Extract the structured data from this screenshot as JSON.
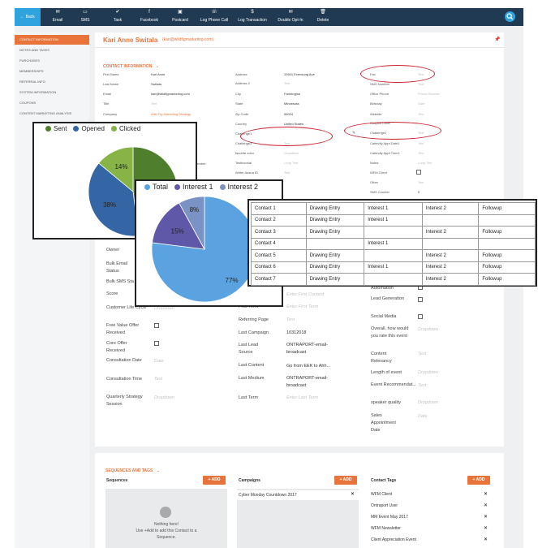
{
  "toolbar": {
    "back": "Back",
    "buttons": [
      {
        "label": "Email",
        "icon": "✉"
      },
      {
        "label": "SMS",
        "icon": "▭"
      },
      {
        "label": "Task",
        "icon": "✔"
      },
      {
        "label": "Facebook",
        "icon": "f"
      },
      {
        "label": "Postcard",
        "icon": "▣"
      },
      {
        "label": "Log Phone Call",
        "icon": "☏"
      },
      {
        "label": "Log Transaction",
        "icon": "$"
      },
      {
        "label": "Double Opt-In",
        "icon": "✉"
      },
      {
        "label": "Delete",
        "icon": "🗑"
      }
    ]
  },
  "sidebar": {
    "items": [
      "CONTACT INFORMATION",
      "NOTES AND TASKS",
      "PURCHASES",
      "MEMBERSHIPS",
      "REFERRAL INFO",
      "SYSTEM INFORMATION",
      "COUPONS",
      "CONTENT MARKETING ANALYSIS"
    ]
  },
  "contact": {
    "name": "Kari Anne Switala",
    "email": "(kari@wildfigmarketing.com)",
    "section_title": "CONTACT INFORMATION",
    "chevron": "⌄"
  },
  "col1": [
    {
      "label": "First Name",
      "value": "Kari Anne"
    },
    {
      "label": "Last Name",
      "value": "Switala"
    },
    {
      "label": "Email",
      "value": "kari@wildfigmarketing.com"
    },
    {
      "label": "Title",
      "value": "Text"
    },
    {
      "label": "Company",
      "value": "Wild Fig Marketing Strategy"
    }
  ],
  "col2": [
    {
      "label": "Address",
      "value": "19941 Evensong Ave"
    },
    {
      "label": "Address 2",
      "value": "Text"
    },
    {
      "label": "City",
      "value": "Farmington"
    },
    {
      "label": "State",
      "value": "Minnesota"
    },
    {
      "label": "Zip Code",
      "value": "55024"
    },
    {
      "label": "Country",
      "value": "United States"
    },
    {
      "label": "Challenge1",
      "value": ""
    },
    {
      "label": "Challenge3",
      "value": "Text"
    },
    {
      "label": "favorite color",
      "value": "Dropdown"
    },
    {
      "label": "Testimonial",
      "value": "Long Text"
    },
    {
      "label": "Writer Asana ID",
      "value": "Text"
    }
  ],
  "col1_extra": {
    "label": "attendee"
  },
  "col3": [
    {
      "label": "Fax",
      "value": "Text"
    },
    {
      "label": "SMS Number",
      "value": "Text"
    },
    {
      "label": "Office Phone",
      "value": "Phone Number"
    },
    {
      "label": "Birthday",
      "value": "Date"
    },
    {
      "label": "Website",
      "value": "Text"
    },
    {
      "label": "Coupon Code",
      "value": ""
    },
    {
      "label": "Challenge2",
      "value": "Text"
    },
    {
      "label": "Calendly Appt Date1",
      "value": "Text"
    },
    {
      "label": "Calendly Appt Time1",
      "value": "Text"
    },
    {
      "label": "Notes",
      "value": "Long Text"
    },
    {
      "label": "WFM Client",
      "value": ""
    },
    {
      "label": "Other",
      "value": "Text"
    },
    {
      "label": "SMS Counter",
      "value": "0"
    }
  ],
  "lower_left": [
    {
      "label": "Owner",
      "value": ""
    },
    {
      "label": "Bulk Email Status",
      "value": "?"
    },
    {
      "label": "Bulk SMS Sta",
      "value": ""
    },
    {
      "label": "Score",
      "value": ""
    },
    {
      "label": "Customer Life Cycle",
      "value": "Dropdown"
    },
    {
      "label": "Free Value Offer Received",
      "value": ""
    },
    {
      "label": "Core Offer Received",
      "value": ""
    },
    {
      "label": "Consultation Date",
      "value": "Date"
    },
    {
      "label": "Consultation Time",
      "value": "Text"
    },
    {
      "label": "Quarterly Strategy Session",
      "value": "Dropdown"
    }
  ],
  "lower_mid": [
    {
      "label": "First Term",
      "value": "Enter First Term"
    },
    {
      "label": "Referring Page",
      "value": "Text"
    },
    {
      "label": "Last Campaign",
      "value": "10312018"
    },
    {
      "label": "Last Lead Source",
      "value": "ONTRAPORT-email-broadcast"
    },
    {
      "label": "Last Content",
      "value": "Go from EEK to Ahh..."
    },
    {
      "label": "Last Medium",
      "value": "ONTRAPORT-email-broadcast"
    },
    {
      "label": "Last Term",
      "value": "Enter Last Term"
    }
  ],
  "lower_mid_top": {
    "value": "Enter First Content"
  },
  "lower_right": [
    {
      "label": "Automation",
      "value": ""
    },
    {
      "label": "Lead Generation",
      "value": ""
    },
    {
      "label": "Social Media",
      "value": ""
    },
    {
      "label": "Overall, how would you rate this event",
      "value": "Dropdown"
    },
    {
      "label": "Content Relevancy",
      "value": "Text"
    },
    {
      "label": "Length of event",
      "value": "Dropdown"
    },
    {
      "label": "Event Recommendat...",
      "value": "Text"
    },
    {
      "label": "speaker quality",
      "value": "Dropdown"
    },
    {
      "label": "Sales Appointment Date",
      "value": "Date"
    }
  ],
  "pie1": {
    "legend": [
      {
        "name": "Sent",
        "color": "#4f7f2c"
      },
      {
        "name": "Opened",
        "color": "#3465a4"
      },
      {
        "name": "Clicked",
        "color": "#86b447"
      }
    ]
  },
  "pie2": {
    "legend": [
      {
        "name": "Total",
        "color": "#5aa3e0"
      },
      {
        "name": "Interest 1",
        "color": "#5f58a8"
      },
      {
        "name": "Interest 2",
        "color": "#7a93c4"
      }
    ]
  },
  "chart_data": [
    {
      "type": "pie",
      "labels": [
        "Sent",
        "Opened",
        "Clicked"
      ],
      "values": [
        48,
        38,
        14
      ],
      "colors": [
        "#4f7f2c",
        "#3465a4",
        "#86b447"
      ]
    },
    {
      "type": "pie",
      "labels": [
        "Total",
        "Interest 1",
        "Interest 2"
      ],
      "values": [
        77,
        15,
        8
      ],
      "colors": [
        "#5aa3e0",
        "#5f58a8",
        "#7a93c4"
      ]
    }
  ],
  "table_rows": [
    [
      "Contact 1",
      "Drawing Entry",
      "Interest 1",
      "Interest 2",
      "Followup"
    ],
    [
      "Contact 2",
      "Drawing Entry",
      "Interest 1",
      "",
      ""
    ],
    [
      "Contact 3",
      "Drawing Entry",
      "",
      "Interest 2",
      "Followup"
    ],
    [
      "Contact 4",
      "",
      "Interest 1",
      "",
      ""
    ],
    [
      "Contact 5",
      "Drawing Entry",
      "",
      "Interest 2",
      "Followup"
    ],
    [
      "Contact 6",
      "Drawing Entry",
      "Interest 1",
      "Interest 2",
      "Followup"
    ],
    [
      "Contact 7",
      "Drawing Entry",
      "",
      "Interest 2",
      "Followup"
    ]
  ],
  "sequences": {
    "section_title": "SEQUENCES AND TAGS",
    "chevron": "⌄",
    "sequences_title": "Sequences",
    "campaigns_title": "Campaigns",
    "tags_title": "Contact Tags",
    "add_label": "+ ADD",
    "empty_title": "Nothing here!",
    "empty_text_1": "Use +Add to add this Contact to a",
    "empty_text_2": "Sequence.",
    "campaigns": [
      "Cyber Monday Countdown 2017"
    ],
    "tags": [
      "WFM Client",
      "Ontraport User",
      "MM Event May 2017",
      "WFM Newsletter",
      "Client Appreciation Event"
    ]
  }
}
